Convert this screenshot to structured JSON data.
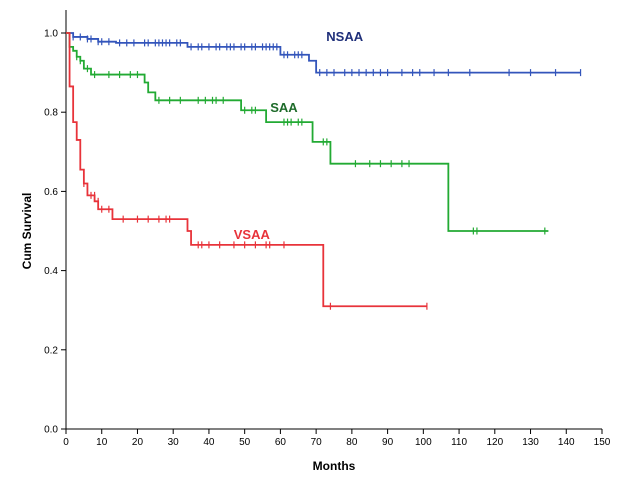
{
  "chart_data": {
    "type": "line",
    "title": "",
    "xlabel": "Months",
    "ylabel": "Cum Survival",
    "xlim": [
      0,
      150
    ],
    "ylim": [
      0,
      1.0
    ],
    "xticks": [
      0,
      10,
      20,
      30,
      40,
      50,
      60,
      70,
      80,
      90,
      100,
      110,
      120,
      130,
      140,
      150
    ],
    "xtick_labels": [
      "0",
      "10",
      "20",
      "30",
      "40",
      "50",
      "60",
      "70",
      "80",
      "90",
      "100",
      "110",
      "120",
      "130",
      "140",
      "150"
    ],
    "yticks": [
      0.0,
      0.2,
      0.4,
      0.6,
      0.8,
      1.0
    ],
    "ytick_labels": [
      "0.0",
      "0.2",
      "0.4",
      "0.6",
      "0.8",
      "1.0"
    ],
    "grid": false,
    "step": true,
    "series": [
      {
        "name": "NSAA",
        "color": "#3355bb",
        "label_color": "#1f2f7a",
        "steps": [
          [
            0,
            1.0
          ],
          [
            2,
            0.99
          ],
          [
            6,
            0.985
          ],
          [
            9,
            0.978
          ],
          [
            14,
            0.975
          ],
          [
            34,
            0.965
          ],
          [
            60,
            0.945
          ],
          [
            68,
            0.93
          ],
          [
            70,
            0.9
          ],
          [
            144,
            0.9
          ]
        ],
        "censors": [
          [
            2,
            0.99
          ],
          [
            4,
            0.99
          ],
          [
            6,
            0.985
          ],
          [
            7,
            0.985
          ],
          [
            9,
            0.978
          ],
          [
            10,
            0.978
          ],
          [
            12,
            0.978
          ],
          [
            15,
            0.975
          ],
          [
            17,
            0.975
          ],
          [
            19,
            0.975
          ],
          [
            22,
            0.975
          ],
          [
            23,
            0.975
          ],
          [
            25,
            0.975
          ],
          [
            26,
            0.975
          ],
          [
            27,
            0.975
          ],
          [
            28,
            0.975
          ],
          [
            29,
            0.975
          ],
          [
            31,
            0.975
          ],
          [
            32,
            0.975
          ],
          [
            35,
            0.965
          ],
          [
            37,
            0.965
          ],
          [
            38,
            0.965
          ],
          [
            40,
            0.965
          ],
          [
            42,
            0.965
          ],
          [
            43,
            0.965
          ],
          [
            45,
            0.965
          ],
          [
            46,
            0.965
          ],
          [
            47,
            0.965
          ],
          [
            49,
            0.965
          ],
          [
            50,
            0.965
          ],
          [
            52,
            0.965
          ],
          [
            53,
            0.965
          ],
          [
            55,
            0.965
          ],
          [
            56,
            0.965
          ],
          [
            57,
            0.965
          ],
          [
            58,
            0.965
          ],
          [
            59,
            0.965
          ],
          [
            61,
            0.945
          ],
          [
            62,
            0.945
          ],
          [
            64,
            0.945
          ],
          [
            65,
            0.945
          ],
          [
            66,
            0.945
          ],
          [
            71,
            0.9
          ],
          [
            73,
            0.9
          ],
          [
            75,
            0.9
          ],
          [
            78,
            0.9
          ],
          [
            80,
            0.9
          ],
          [
            82,
            0.9
          ],
          [
            84,
            0.9
          ],
          [
            86,
            0.9
          ],
          [
            88,
            0.9
          ],
          [
            90,
            0.9
          ],
          [
            94,
            0.9
          ],
          [
            97,
            0.9
          ],
          [
            99,
            0.9
          ],
          [
            103,
            0.9
          ],
          [
            107,
            0.9
          ],
          [
            113,
            0.9
          ],
          [
            124,
            0.9
          ],
          [
            130,
            0.9
          ],
          [
            137,
            0.9
          ],
          [
            144,
            0.9
          ]
        ]
      },
      {
        "name": "SAA",
        "color": "#22aa33",
        "label_color": "#1e6b2a",
        "steps": [
          [
            0,
            1.0
          ],
          [
            1,
            0.965
          ],
          [
            2,
            0.955
          ],
          [
            3,
            0.94
          ],
          [
            4,
            0.93
          ],
          [
            5,
            0.91
          ],
          [
            7,
            0.895
          ],
          [
            22,
            0.875
          ],
          [
            23,
            0.85
          ],
          [
            25,
            0.83
          ],
          [
            49,
            0.805
          ],
          [
            56,
            0.775
          ],
          [
            69,
            0.725
          ],
          [
            74,
            0.67
          ],
          [
            107,
            0.5
          ],
          [
            135,
            0.5
          ]
        ],
        "censors": [
          [
            3,
            0.94
          ],
          [
            4,
            0.93
          ],
          [
            6,
            0.91
          ],
          [
            8,
            0.895
          ],
          [
            12,
            0.895
          ],
          [
            15,
            0.895
          ],
          [
            18,
            0.895
          ],
          [
            20,
            0.895
          ],
          [
            26,
            0.83
          ],
          [
            29,
            0.83
          ],
          [
            32,
            0.83
          ],
          [
            37,
            0.83
          ],
          [
            39,
            0.83
          ],
          [
            41,
            0.83
          ],
          [
            42,
            0.83
          ],
          [
            44,
            0.83
          ],
          [
            50,
            0.805
          ],
          [
            52,
            0.805
          ],
          [
            53,
            0.805
          ],
          [
            61,
            0.775
          ],
          [
            62,
            0.775
          ],
          [
            63,
            0.775
          ],
          [
            65,
            0.775
          ],
          [
            66,
            0.775
          ],
          [
            72,
            0.725
          ],
          [
            73,
            0.725
          ],
          [
            81,
            0.67
          ],
          [
            85,
            0.67
          ],
          [
            88,
            0.67
          ],
          [
            91,
            0.67
          ],
          [
            94,
            0.67
          ],
          [
            96,
            0.67
          ],
          [
            114,
            0.5
          ],
          [
            115,
            0.5
          ],
          [
            134,
            0.5
          ]
        ]
      },
      {
        "name": "VSAA",
        "color": "#e8333a",
        "label_color": "#e8333a",
        "steps": [
          [
            0,
            1.0
          ],
          [
            1,
            0.865
          ],
          [
            2,
            0.775
          ],
          [
            3,
            0.73
          ],
          [
            4,
            0.655
          ],
          [
            5,
            0.62
          ],
          [
            6,
            0.59
          ],
          [
            8,
            0.575
          ],
          [
            9,
            0.555
          ],
          [
            13,
            0.53
          ],
          [
            34,
            0.5
          ],
          [
            35,
            0.465
          ],
          [
            72,
            0.31
          ],
          [
            101,
            0.31
          ]
        ],
        "censors": [
          [
            5,
            0.62
          ],
          [
            7,
            0.59
          ],
          [
            8,
            0.59
          ],
          [
            9,
            0.575
          ],
          [
            10,
            0.555
          ],
          [
            12,
            0.555
          ],
          [
            16,
            0.53
          ],
          [
            20,
            0.53
          ],
          [
            23,
            0.53
          ],
          [
            26,
            0.53
          ],
          [
            28,
            0.53
          ],
          [
            29,
            0.53
          ],
          [
            37,
            0.465
          ],
          [
            38,
            0.465
          ],
          [
            40,
            0.465
          ],
          [
            43,
            0.465
          ],
          [
            47,
            0.465
          ],
          [
            50,
            0.465
          ],
          [
            53,
            0.465
          ],
          [
            56,
            0.465
          ],
          [
            57,
            0.465
          ],
          [
            61,
            0.465
          ],
          [
            74,
            0.31
          ],
          [
            101,
            0.31
          ]
        ]
      }
    ],
    "annotations": [
      {
        "text": "NSAA",
        "series": "NSAA",
        "x": 78,
        "y": 0.98
      },
      {
        "text": "SAA",
        "series": "SAA",
        "x": 61,
        "y": 0.8
      },
      {
        "text": "VSAA",
        "series": "VSAA",
        "x": 52,
        "y": 0.48
      }
    ]
  }
}
